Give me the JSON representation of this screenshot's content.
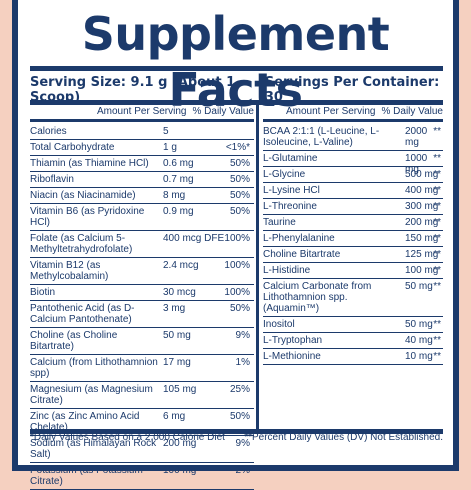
{
  "title": "Supplement Facts",
  "serving_size": "Serving Size: 9.1 g (About 1 Scoop)",
  "servings_per_container": "Servings Per Container: 30",
  "headers": {
    "amount": "Amount Per Serving",
    "dv": "% Daily Value"
  },
  "left_rows": [
    {
      "name": "Calories",
      "amount": "5",
      "dv": ""
    },
    {
      "name": "Total Carbohydrate",
      "amount": "1 g",
      "dv": "<1%*"
    },
    {
      "name": "Thiamin (as Thiamine HCl)",
      "amount": "0.6 mg",
      "dv": "50%"
    },
    {
      "name": "Riboflavin",
      "amount": "0.7 mg",
      "dv": "50%"
    },
    {
      "name": "Niacin (as Niacinamide)",
      "amount": "8 mg",
      "dv": "50%"
    },
    {
      "name": "Vitamin B6 (as Pyridoxine HCl)",
      "amount": "0.9 mg",
      "dv": "50%"
    },
    {
      "name": "Folate (as Calcium 5-Methyltetrahydrofolate)",
      "amount": "400 mcg DFE",
      "dv": "100%"
    },
    {
      "name": "Vitamin B12 (as Methylcobalamin)",
      "amount": "2.4 mcg",
      "dv": "100%"
    },
    {
      "name": "Biotin",
      "amount": "30 mcg",
      "dv": "100%"
    },
    {
      "name": "Pantothenic Acid (as D-Calcium Pantothenate)",
      "amount": "3 mg",
      "dv": "50%"
    },
    {
      "name": "Choline (as Choline Bitartrate)",
      "amount": "50 mg",
      "dv": "9%"
    },
    {
      "name": "Calcium (from Lithothamnion spp)",
      "amount": "17 mg",
      "dv": "1%"
    },
    {
      "name": "Magnesium (as Magnesium Citrate)",
      "amount": "105 mg",
      "dv": "25%"
    },
    {
      "name": "Zinc (as Zinc Amino Acid Chelate)",
      "amount": "6 mg",
      "dv": "50%"
    },
    {
      "name": "Sodium (as Himalayan Rock Salt)",
      "amount": "200 mg",
      "dv": "9%"
    },
    {
      "name": "Potassium (as Potassium Citrate)",
      "amount": "100 mg",
      "dv": "2%"
    }
  ],
  "right_rows": [
    {
      "name": "BCAA 2:1:1 (L-Leucine, L-Isoleucine, L-Valine)",
      "amount": "2000 mg",
      "dv": "**"
    },
    {
      "name": "L-Glutamine",
      "amount": "1000 mg",
      "dv": "**"
    },
    {
      "name": "L-Glycine",
      "amount": "500 mg",
      "dv": "**"
    },
    {
      "name": "L-Lysine HCl",
      "amount": "400 mg",
      "dv": "**"
    },
    {
      "name": "L-Threonine",
      "amount": "300 mg",
      "dv": "**"
    },
    {
      "name": "Taurine",
      "amount": "200 mg",
      "dv": "**"
    },
    {
      "name": "L-Phenylalanine",
      "amount": "150 mg",
      "dv": "**"
    },
    {
      "name": "Choline Bitartrate",
      "amount": "125 mg",
      "dv": "**"
    },
    {
      "name": "L-Histidine",
      "amount": "100 mg",
      "dv": "**"
    },
    {
      "name": "Calcium Carbonate from Lithothamnion spp. (Aquamin™)",
      "amount": "50 mg",
      "dv": "**"
    },
    {
      "name": "Inositol",
      "amount": "50 mg",
      "dv": "**"
    },
    {
      "name": "L-Tryptophan",
      "amount": "40 mg",
      "dv": "**"
    },
    {
      "name": "L-Methionine",
      "amount": "10 mg",
      "dv": "**"
    }
  ],
  "footnote_left": "*Daily Values Based on a 2,000 Calorie Diet",
  "footnote_right": "**Percent Daily Values (DV) Not Established."
}
